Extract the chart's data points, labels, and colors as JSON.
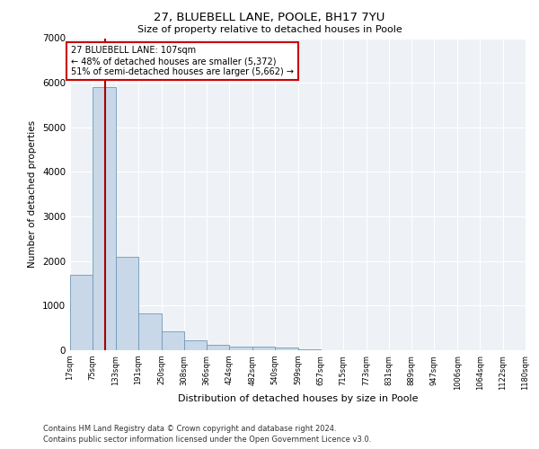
{
  "title_line1": "27, BLUEBELL LANE, POOLE, BH17 7YU",
  "title_line2": "Size of property relative to detached houses in Poole",
  "xlabel": "Distribution of detached houses by size in Poole",
  "ylabel": "Number of detached properties",
  "footnote1": "Contains HM Land Registry data © Crown copyright and database right 2024.",
  "footnote2": "Contains public sector information licensed under the Open Government Licence v3.0.",
  "annotation_title": "27 BLUEBELL LANE: 107sqm",
  "annotation_line1": "← 48% of detached houses are smaller (5,372)",
  "annotation_line2": "51% of semi-detached houses are larger (5,662) →",
  "property_size": 107,
  "bar_color": "#c8d8e8",
  "bar_edge_color": "#7098b8",
  "vline_color": "#aa0000",
  "annotation_box_color": "#cc0000",
  "ylim": [
    0,
    7000
  ],
  "yticks": [
    0,
    1000,
    2000,
    3000,
    4000,
    5000,
    6000,
    7000
  ],
  "bin_edges": [
    17,
    75,
    133,
    191,
    250,
    308,
    366,
    424,
    482,
    540,
    599,
    657,
    715,
    773,
    831,
    889,
    947,
    1006,
    1064,
    1122,
    1180
  ],
  "bin_labels": [
    "17sqm",
    "75sqm",
    "133sqm",
    "191sqm",
    "250sqm",
    "308sqm",
    "366sqm",
    "424sqm",
    "482sqm",
    "540sqm",
    "599sqm",
    "657sqm",
    "715sqm",
    "773sqm",
    "831sqm",
    "889sqm",
    "947sqm",
    "1006sqm",
    "1064sqm",
    "1122sqm",
    "1180sqm"
  ],
  "bar_heights": [
    1700,
    5900,
    2100,
    820,
    420,
    220,
    130,
    90,
    75,
    55,
    20,
    10,
    5,
    3,
    2,
    2,
    1,
    1,
    1,
    1
  ]
}
